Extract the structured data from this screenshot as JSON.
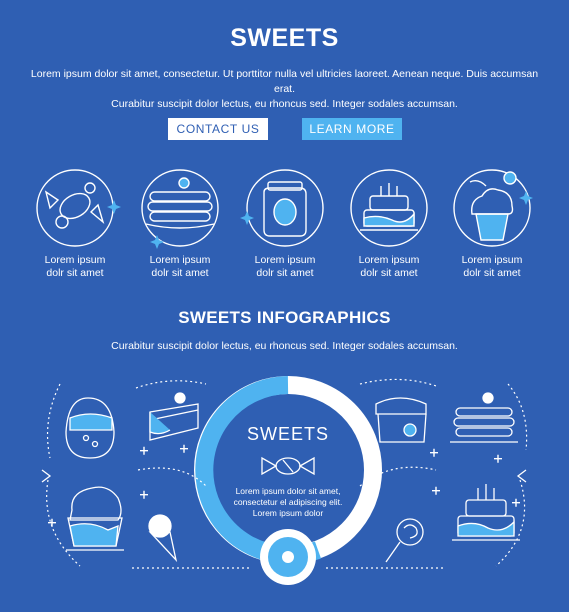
{
  "header": {
    "title": "SWEETS",
    "intro_line1": "Lorem ipsum dolor sit amet, consectetur. Ut porttitor nulla vel ultricies laoreet. Aenean neque. Duis accumsan erat.",
    "intro_line2": "Curabitur suscipit dolor lectus, eu rhoncus sed. Integer sodales accumsan."
  },
  "buttons": {
    "contact_label": "CONTACT US",
    "learn_label": "LEARN MORE"
  },
  "categories": [
    {
      "icon": "candy-icon",
      "label1": "Lorem ipsum",
      "label2": "dolr sit amet"
    },
    {
      "icon": "pancakes-icon",
      "label1": "Lorem ipsum",
      "label2": "dolr sit amet"
    },
    {
      "icon": "jam-jar-icon",
      "label1": "Lorem ipsum",
      "label2": "dolr sit amet"
    },
    {
      "icon": "cake-icon",
      "label1": "Lorem ipsum",
      "label2": "dolr sit amet"
    },
    {
      "icon": "cupcake-icon",
      "label1": "Lorem ipsum",
      "label2": "dolr sit amet"
    }
  ],
  "infographic": {
    "title": "SWEETS INFOGRAPHICS",
    "subtitle": "Curabitur suscipit dolor lectus, eu rhoncus sed. Integer sodales accumsan.",
    "center_title": "SWEETS",
    "center_desc1": "Lorem ipsum dolor sit amet,",
    "center_desc2": "consectetur el adipiscing elit.",
    "center_desc3": "Lorem ipsum dolor"
  },
  "colors": {
    "background": "#2f5fb3",
    "accent": "#4fb3f0",
    "line": "#ffffff"
  }
}
